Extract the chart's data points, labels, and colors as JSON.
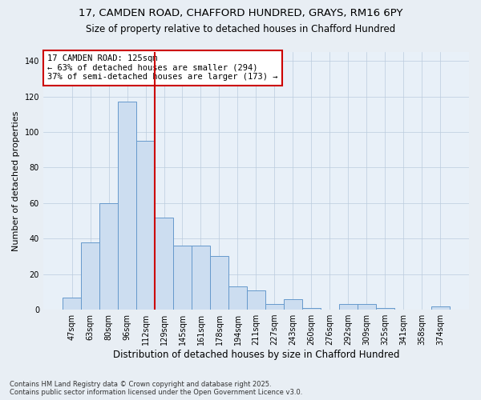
{
  "title1": "17, CAMDEN ROAD, CHAFFORD HUNDRED, GRAYS, RM16 6PY",
  "title2": "Size of property relative to detached houses in Chafford Hundred",
  "xlabel": "Distribution of detached houses by size in Chafford Hundred",
  "ylabel": "Number of detached properties",
  "categories": [
    "47sqm",
    "63sqm",
    "80sqm",
    "96sqm",
    "112sqm",
    "129sqm",
    "145sqm",
    "161sqm",
    "178sqm",
    "194sqm",
    "211sqm",
    "227sqm",
    "243sqm",
    "260sqm",
    "276sqm",
    "292sqm",
    "309sqm",
    "325sqm",
    "341sqm",
    "358sqm",
    "374sqm"
  ],
  "values": [
    7,
    38,
    60,
    117,
    95,
    52,
    36,
    36,
    30,
    13,
    11,
    3,
    6,
    1,
    0,
    3,
    3,
    1,
    0,
    0,
    2
  ],
  "bar_color": "#ccddf0",
  "bar_edge_color": "#6699cc",
  "vline_color": "#cc0000",
  "vline_x_index": 5,
  "annotation_text": "17 CAMDEN ROAD: 125sqm\n← 63% of detached houses are smaller (294)\n37% of semi-detached houses are larger (173) →",
  "annotation_box_color": "#ffffff",
  "annotation_box_edge": "#cc0000",
  "ylim": [
    0,
    145
  ],
  "yticks": [
    0,
    20,
    40,
    60,
    80,
    100,
    120,
    140
  ],
  "footer": "Contains HM Land Registry data © Crown copyright and database right 2025.\nContains public sector information licensed under the Open Government Licence v3.0.",
  "bg_color": "#e8eef4",
  "plot_bg_color": "#e8f0f8",
  "grid_color": "#bbccdd"
}
